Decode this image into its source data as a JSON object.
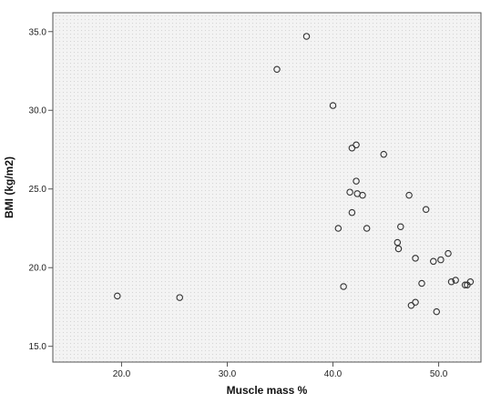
{
  "chart_data": {
    "type": "scatter",
    "xlabel": "Muscle mass %",
    "ylabel": "BMI (kg/m2)",
    "xlim": [
      13.5,
      54.0
    ],
    "ylim": [
      14.0,
      36.2
    ],
    "xticks": [
      20.0,
      30.0,
      40.0,
      50.0
    ],
    "xtick_labels": [
      "20.0",
      "30.0",
      "40.0",
      "50.0"
    ],
    "yticks": [
      15.0,
      20.0,
      25.0,
      30.0,
      35.0
    ],
    "ytick_labels": [
      "15.0",
      "20.0",
      "25.0",
      "30.0",
      "35.0"
    ],
    "grid": false,
    "marker": "open-circle",
    "colors": {
      "plot_background": "#efefef",
      "marker": "#333333",
      "axis": "#555555"
    },
    "points": [
      {
        "x": 19.6,
        "y": 18.2
      },
      {
        "x": 25.5,
        "y": 18.1
      },
      {
        "x": 34.7,
        "y": 32.6
      },
      {
        "x": 37.5,
        "y": 34.7
      },
      {
        "x": 40.0,
        "y": 30.3
      },
      {
        "x": 41.8,
        "y": 27.6
      },
      {
        "x": 42.2,
        "y": 27.8
      },
      {
        "x": 44.8,
        "y": 27.2
      },
      {
        "x": 42.2,
        "y": 25.5
      },
      {
        "x": 41.6,
        "y": 24.8
      },
      {
        "x": 42.3,
        "y": 24.7
      },
      {
        "x": 42.8,
        "y": 24.6
      },
      {
        "x": 47.2,
        "y": 24.6
      },
      {
        "x": 41.8,
        "y": 23.5
      },
      {
        "x": 48.8,
        "y": 23.7
      },
      {
        "x": 40.5,
        "y": 22.5
      },
      {
        "x": 43.2,
        "y": 22.5
      },
      {
        "x": 46.4,
        "y": 22.6
      },
      {
        "x": 46.1,
        "y": 21.6
      },
      {
        "x": 46.2,
        "y": 21.2
      },
      {
        "x": 50.9,
        "y": 20.9
      },
      {
        "x": 47.8,
        "y": 20.6
      },
      {
        "x": 50.2,
        "y": 20.5
      },
      {
        "x": 49.5,
        "y": 20.4
      },
      {
        "x": 48.4,
        "y": 19.0
      },
      {
        "x": 51.2,
        "y": 19.1
      },
      {
        "x": 51.6,
        "y": 19.2
      },
      {
        "x": 52.5,
        "y": 18.9
      },
      {
        "x": 52.7,
        "y": 18.9
      },
      {
        "x": 53.0,
        "y": 19.1
      },
      {
        "x": 41.0,
        "y": 18.8
      },
      {
        "x": 47.8,
        "y": 17.8
      },
      {
        "x": 47.4,
        "y": 17.6
      },
      {
        "x": 49.8,
        "y": 17.2
      }
    ]
  }
}
